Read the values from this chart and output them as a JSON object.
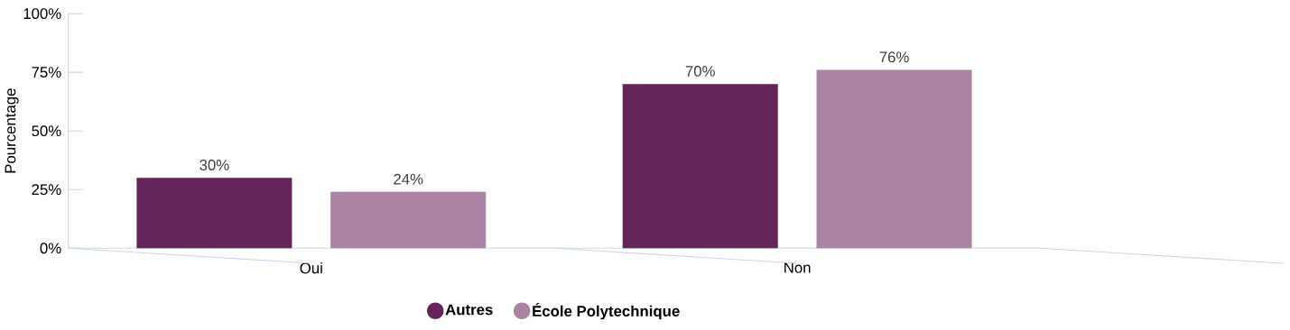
{
  "chart_data": {
    "type": "bar",
    "ylabel": "Pourcentage",
    "categories": [
      "Oui",
      "Non"
    ],
    "series": [
      {
        "name": "Autres",
        "color": "#66255a",
        "values": [
          30,
          70
        ],
        "value_labels": [
          "30%",
          "70%"
        ]
      },
      {
        "name": "École Polytechnique",
        "color": "#ab83a3",
        "values": [
          24,
          76
        ],
        "value_labels": [
          "24%",
          "76%"
        ]
      }
    ],
    "ylim": [
      0,
      100
    ],
    "yticks": [
      {
        "value": 0,
        "label": "0%"
      },
      {
        "value": 25,
        "label": "25%"
      },
      {
        "value": 50,
        "label": "50%"
      },
      {
        "value": 75,
        "label": "75%"
      },
      {
        "value": 100,
        "label": "100%"
      }
    ],
    "grid": false,
    "legend": "bottom"
  }
}
